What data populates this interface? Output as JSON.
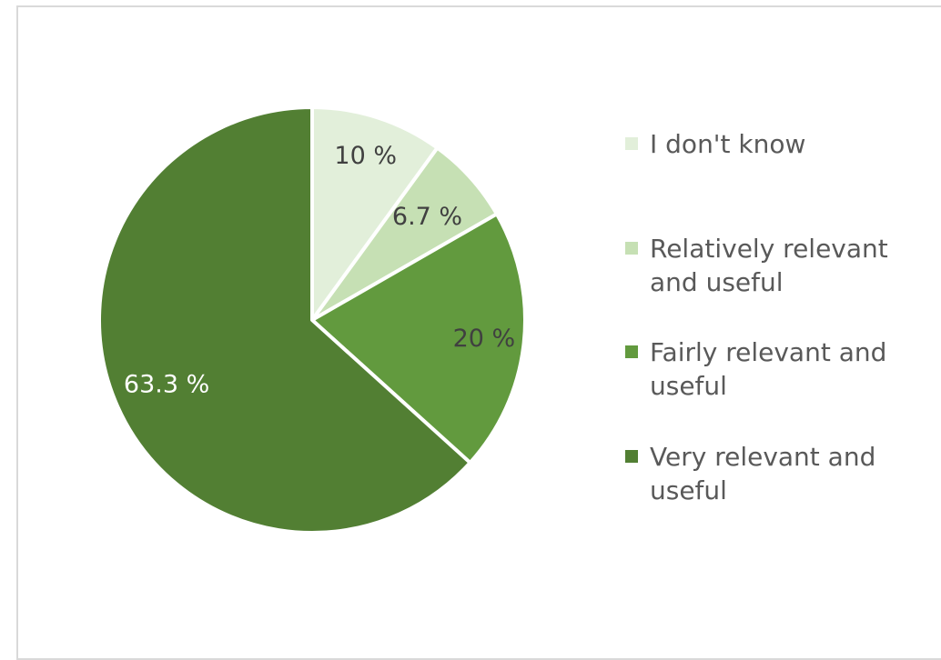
{
  "chart_data": {
    "type": "pie",
    "title": "",
    "start_angle_deg": 0,
    "direction": "clockwise",
    "legend_position": "right",
    "slices": [
      {
        "name": "I don't know",
        "value": 10,
        "label": "10 %",
        "color": "#e2efda",
        "label_color": "#404040"
      },
      {
        "name": "Relatively relevant and useful",
        "value": 6.7,
        "label": "6.7 %",
        "color": "#c6e0b4",
        "label_color": "#404040"
      },
      {
        "name": "Fairly relevant and useful",
        "value": 20,
        "label": "20 %",
        "color": "#629a3e",
        "label_color": "#404040"
      },
      {
        "name": "Very relevant and useful",
        "value": 63.3,
        "label": "63.3 %",
        "color": "#527f33",
        "label_color": "#ffffff"
      }
    ]
  }
}
